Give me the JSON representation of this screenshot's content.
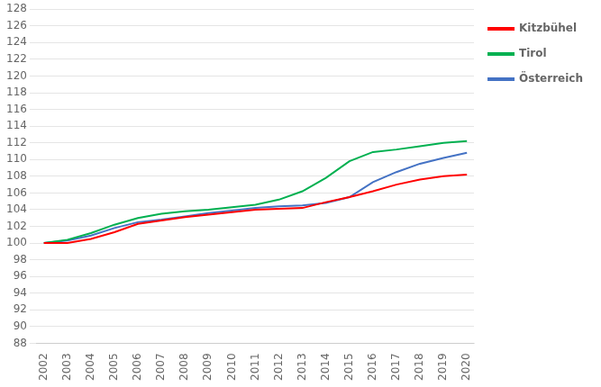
{
  "chart_data": {
    "type": "line",
    "x": [
      2002,
      2003,
      2004,
      2005,
      2006,
      2007,
      2008,
      2009,
      2010,
      2011,
      2012,
      2013,
      2014,
      2015,
      2016,
      2017,
      2018,
      2019,
      2020
    ],
    "series": [
      {
        "name": "Kitzbühel",
        "color": "#ff0000",
        "values": [
          100.0,
          100.0,
          100.5,
          101.3,
          102.3,
          102.7,
          103.1,
          103.4,
          103.7,
          104.0,
          104.1,
          104.2,
          104.9,
          105.5,
          106.2,
          107.0,
          107.6,
          108.0,
          108.2
        ]
      },
      {
        "name": "Tirol",
        "color": "#00b050",
        "values": [
          100.0,
          100.4,
          101.2,
          102.2,
          103.0,
          103.5,
          103.8,
          104.0,
          104.3,
          104.6,
          105.2,
          106.2,
          107.8,
          109.8,
          110.9,
          111.2,
          111.6,
          112.0,
          112.2
        ]
      },
      {
        "name": "Österreich",
        "color": "#4472c4",
        "values": [
          100.0,
          100.3,
          100.9,
          101.8,
          102.5,
          102.8,
          103.2,
          103.6,
          103.9,
          104.2,
          104.4,
          104.5,
          104.8,
          105.5,
          107.3,
          108.5,
          109.5,
          110.2,
          110.8
        ]
      }
    ],
    "xlim": [
      2001.7,
      2020.3
    ],
    "xticks": [
      2002,
      2003,
      2004,
      2005,
      2006,
      2007,
      2008,
      2009,
      2010,
      2011,
      2012,
      2013,
      2014,
      2015,
      2016,
      2017,
      2018,
      2019,
      2020
    ],
    "ylim": [
      88,
      128
    ],
    "yticks": [
      88,
      90,
      92,
      94,
      96,
      98,
      100,
      102,
      104,
      106,
      108,
      110,
      112,
      114,
      116,
      118,
      120,
      122,
      124,
      126,
      128
    ],
    "grid": true,
    "legend": "right"
  }
}
